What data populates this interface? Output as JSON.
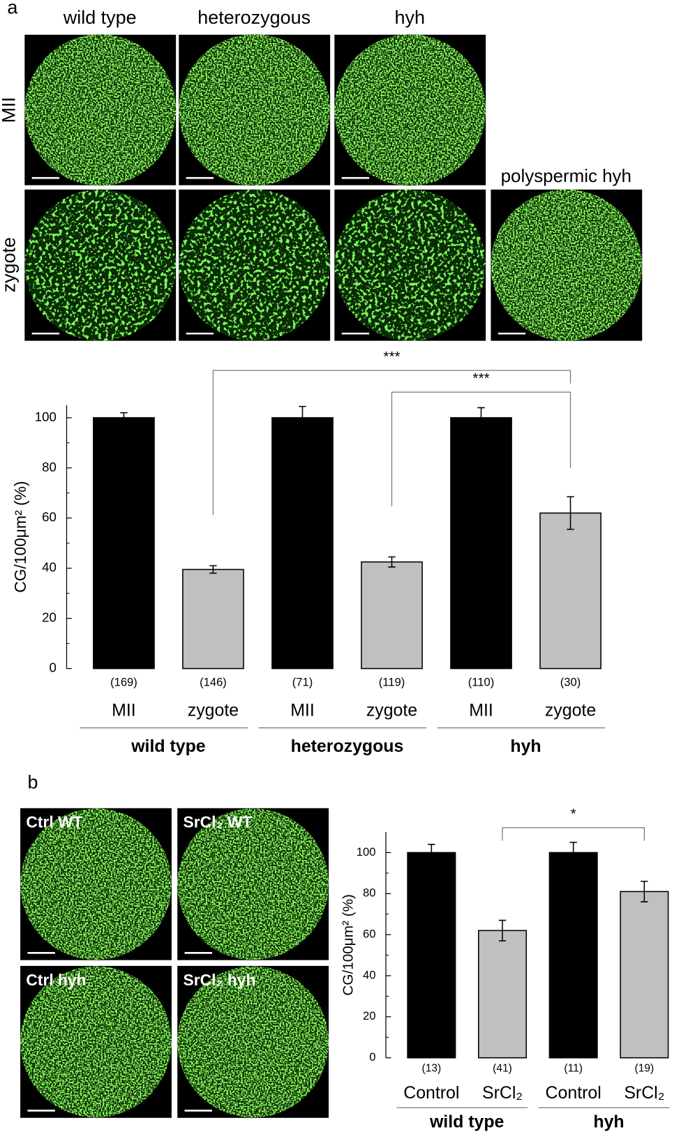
{
  "panel_a": {
    "label": "a",
    "columns": [
      "wild type",
      "heterozygous",
      "hyh"
    ],
    "rows": [
      "MII",
      "zygote"
    ],
    "extra_image_label": "polyspermic hyh"
  },
  "panel_b": {
    "label": "b",
    "image_labels": [
      "Ctrl WT",
      "SrCl₂ WT",
      "Ctrl hyh",
      "SrCl₂ hyh"
    ]
  },
  "chart_data": [
    {
      "type": "bar",
      "y_label": "CG/100μm² (%)",
      "categories": [
        "MII",
        "zygote",
        "MII",
        "zygote",
        "MII",
        "zygote"
      ],
      "groups": [
        "wild type",
        "heterozygous",
        "hyh"
      ],
      "sample_sizes": [
        "(169)",
        "(146)",
        "(71)",
        "(119)",
        "(110)",
        "(30)"
      ],
      "values": [
        100,
        39.5,
        100,
        42.5,
        100,
        62
      ],
      "errors": [
        2,
        1.5,
        4.5,
        2,
        4,
        6.5
      ],
      "bar_colors": [
        "#000000",
        "#c0c0c0",
        "#000000",
        "#c0c0c0",
        "#000000",
        "#c0c0c0"
      ],
      "ylim": [
        0,
        105
      ],
      "yticks": [
        0,
        20,
        40,
        60,
        80,
        100
      ],
      "minor_yticks": [
        10,
        30,
        50,
        70,
        90
      ],
      "brackets": [
        {
          "from": 1,
          "to": 5,
          "label": "***"
        },
        {
          "from": 3,
          "to": 5,
          "label": "***"
        }
      ]
    },
    {
      "type": "bar",
      "y_label": "CG/100μm² (%)",
      "categories": [
        "Control",
        "SrCl₂",
        "Control",
        "SrCl₂"
      ],
      "groups": [
        "wild type",
        "hyh"
      ],
      "sample_sizes": [
        "(13)",
        "(41)",
        "(11)",
        "(19)"
      ],
      "values": [
        100,
        62,
        100,
        81
      ],
      "errors": [
        4,
        5,
        5,
        5
      ],
      "bar_colors": [
        "#000000",
        "#c0c0c0",
        "#000000",
        "#c0c0c0"
      ],
      "ylim": [
        0,
        110
      ],
      "yticks": [
        0,
        20,
        40,
        60,
        80,
        100
      ],
      "minor_yticks": [
        10,
        30,
        50,
        70,
        90
      ],
      "brackets": [
        {
          "from": 1,
          "to": 3,
          "label": "*"
        }
      ]
    }
  ]
}
